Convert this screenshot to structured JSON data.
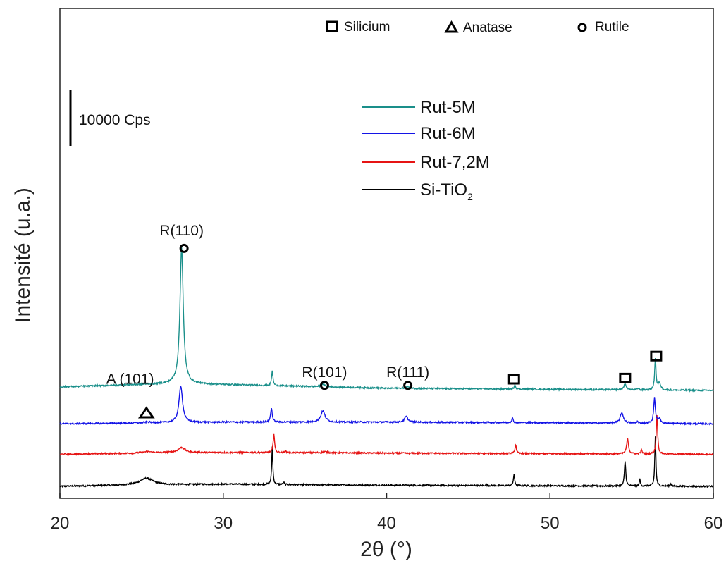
{
  "chart_data": {
    "type": "line",
    "xlabel": "2θ (°)",
    "ylabel": "Intensité (u.a.)",
    "xlim": [
      20,
      60
    ],
    "xticks": [
      20,
      30,
      40,
      50,
      60
    ],
    "y_ticks_shown": false,
    "grid": false,
    "scale_bar": {
      "label": "10000 Cps",
      "cps": 10000
    },
    "legend": {
      "placement": "top-center",
      "entries": [
        {
          "label": "Rut-5M",
          "color": "#1a8f8a"
        },
        {
          "label": "Rut-6M",
          "color": "#1414e6"
        },
        {
          "label": "Rut-7,2M",
          "color": "#e61414"
        },
        {
          "label_main": "Si-TiO",
          "label_sub": "2",
          "color": "#000000"
        }
      ]
    },
    "marker_legend": [
      {
        "symbol": "square",
        "label": "Silicium"
      },
      {
        "symbol": "triangle",
        "label": "Anatase"
      },
      {
        "symbol": "circle",
        "label": "Rutile"
      }
    ],
    "series": [
      {
        "name": "Rut-5M",
        "color": "#1a8f8a",
        "baseline": [
          [
            20,
            650
          ],
          [
            27,
            1200
          ],
          [
            31,
            1000
          ],
          [
            40,
            400
          ],
          [
            50,
            200
          ],
          [
            60,
            0
          ]
        ],
        "offset_cps": 17000,
        "peaks": [
          {
            "x": 27.45,
            "h": 24200,
            "w": 0.12
          },
          {
            "x": 33.0,
            "h": 2600,
            "w": 0.05
          },
          {
            "x": 36.1,
            "h": 500,
            "w": 0.12
          },
          {
            "x": 41.25,
            "h": 350,
            "w": 0.1
          },
          {
            "x": 47.85,
            "h": 800,
            "w": 0.05
          },
          {
            "x": 54.6,
            "h": 1000,
            "w": 0.1
          },
          {
            "x": 55.4,
            "h": 300,
            "w": 0.05
          },
          {
            "x": 56.45,
            "h": 5500,
            "w": 0.05
          },
          {
            "x": 56.7,
            "h": 1200,
            "w": 0.1
          }
        ]
      },
      {
        "name": "Rut-6M",
        "color": "#1414e6",
        "baseline": [
          [
            20,
            0
          ],
          [
            27,
            200
          ],
          [
            30,
            300
          ],
          [
            40,
            300
          ],
          [
            50,
            200
          ],
          [
            60,
            0
          ]
        ],
        "offset_cps": 11100,
        "peaks": [
          {
            "x": 25.35,
            "h": 150,
            "w": 0.3
          },
          {
            "x": 27.4,
            "h": 6500,
            "w": 0.13
          },
          {
            "x": 32.95,
            "h": 2500,
            "w": 0.06
          },
          {
            "x": 36.1,
            "h": 2000,
            "w": 0.15
          },
          {
            "x": 41.2,
            "h": 1000,
            "w": 0.12
          },
          {
            "x": 47.7,
            "h": 800,
            "w": 0.05
          },
          {
            "x": 54.4,
            "h": 1800,
            "w": 0.12
          },
          {
            "x": 55.35,
            "h": 300,
            "w": 0.05
          },
          {
            "x": 56.4,
            "h": 4500,
            "w": 0.06
          },
          {
            "x": 56.7,
            "h": 800,
            "w": 0.1
          }
        ]
      },
      {
        "name": "Rut-7,2M",
        "color": "#e61414",
        "baseline": [
          [
            20,
            0
          ],
          [
            25,
            200
          ],
          [
            27,
            300
          ],
          [
            33,
            300
          ],
          [
            40,
            200
          ],
          [
            50,
            100
          ],
          [
            60,
            0
          ]
        ],
        "offset_cps": 5700,
        "peaks": [
          {
            "x": 25.35,
            "h": 250,
            "w": 0.35
          },
          {
            "x": 27.45,
            "h": 900,
            "w": 0.25
          },
          {
            "x": 33.1,
            "h": 3400,
            "w": 0.05
          },
          {
            "x": 33.8,
            "h": 300,
            "w": 0.05
          },
          {
            "x": 36.2,
            "h": 200,
            "w": 0.15
          },
          {
            "x": 47.9,
            "h": 1600,
            "w": 0.05
          },
          {
            "x": 54.75,
            "h": 2700,
            "w": 0.07
          },
          {
            "x": 55.6,
            "h": 700,
            "w": 0.05
          },
          {
            "x": 56.55,
            "h": 7000,
            "w": 0.05
          }
        ]
      },
      {
        "name": "Si-TiO2",
        "color": "#000000",
        "baseline": [
          [
            20,
            0
          ],
          [
            24,
            200
          ],
          [
            30,
            400
          ],
          [
            34,
            300
          ],
          [
            40,
            200
          ],
          [
            50,
            100
          ],
          [
            60,
            0
          ]
        ],
        "offset_cps": 0,
        "peaks": [
          {
            "x": 25.3,
            "h": 1200,
            "w": 0.5
          },
          {
            "x": 33.0,
            "h": 6700,
            "w": 0.04
          },
          {
            "x": 33.7,
            "h": 400,
            "w": 0.05
          },
          {
            "x": 46.1,
            "h": 200,
            "w": 0.05
          },
          {
            "x": 47.8,
            "h": 1900,
            "w": 0.05
          },
          {
            "x": 54.6,
            "h": 4400,
            "w": 0.05
          },
          {
            "x": 55.5,
            "h": 1200,
            "w": 0.04
          },
          {
            "x": 56.45,
            "h": 8800,
            "w": 0.04
          },
          {
            "x": 57.4,
            "h": 400,
            "w": 0.05
          }
        ]
      }
    ],
    "annotations": [
      {
        "text": "R(110)",
        "x": 27.45,
        "cps": 44500
      },
      {
        "text": "A (101)",
        "x": 24.3,
        "cps": 18200
      },
      {
        "text": "R(101)",
        "x": 36.2,
        "cps": 19400
      },
      {
        "text": "R(111)",
        "x": 41.3,
        "cps": 19400
      }
    ],
    "phase_markers": [
      {
        "symbol": "circle",
        "x": 27.6,
        "cps": 42200
      },
      {
        "symbol": "circle",
        "x": 36.2,
        "cps": 17900
      },
      {
        "symbol": "circle",
        "x": 41.3,
        "cps": 17900
      },
      {
        "symbol": "triangle",
        "x": 25.3,
        "cps": 13000
      },
      {
        "symbol": "square",
        "x": 47.8,
        "cps": 19000
      },
      {
        "symbol": "square",
        "x": 54.6,
        "cps": 19200
      },
      {
        "symbol": "square",
        "x": 56.5,
        "cps": 23100
      }
    ]
  }
}
